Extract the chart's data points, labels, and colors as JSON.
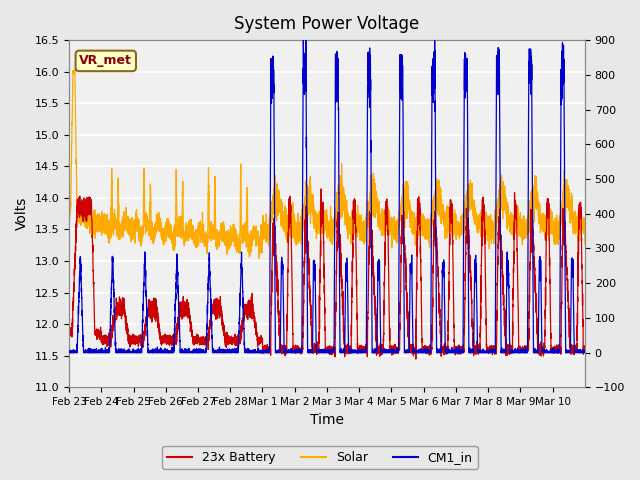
{
  "title": "System Power Voltage",
  "xlabel": "Time",
  "ylabel_left": "Volts",
  "ylim_left": [
    11.0,
    16.5
  ],
  "ylim_right": [
    -100,
    900
  ],
  "yticks_left": [
    11.0,
    11.5,
    12.0,
    12.5,
    13.0,
    13.5,
    14.0,
    14.5,
    15.0,
    15.5,
    16.0,
    16.5
  ],
  "yticks_right": [
    -100,
    0,
    100,
    200,
    300,
    400,
    500,
    600,
    700,
    800,
    900
  ],
  "bg_color": "#e8e8e8",
  "plot_bg_color": "#f0f0f0",
  "color_battery": "#cc0000",
  "color_solar": "#ffaa00",
  "color_cm1": "#0000cc",
  "legend_labels": [
    "23x Battery",
    "Solar",
    "CM1_in"
  ],
  "vr_met_label": "VR_met",
  "days_labels": [
    "Feb 23",
    "Feb 24",
    "Feb 25",
    "Feb 26",
    "Feb 27",
    "Feb 28",
    "Mar 1",
    "Mar 2",
    "Mar 3",
    "Mar 4",
    "Mar 5",
    "Mar 6",
    "Mar 7",
    "Mar 8",
    "Mar 9",
    "Mar 10"
  ]
}
